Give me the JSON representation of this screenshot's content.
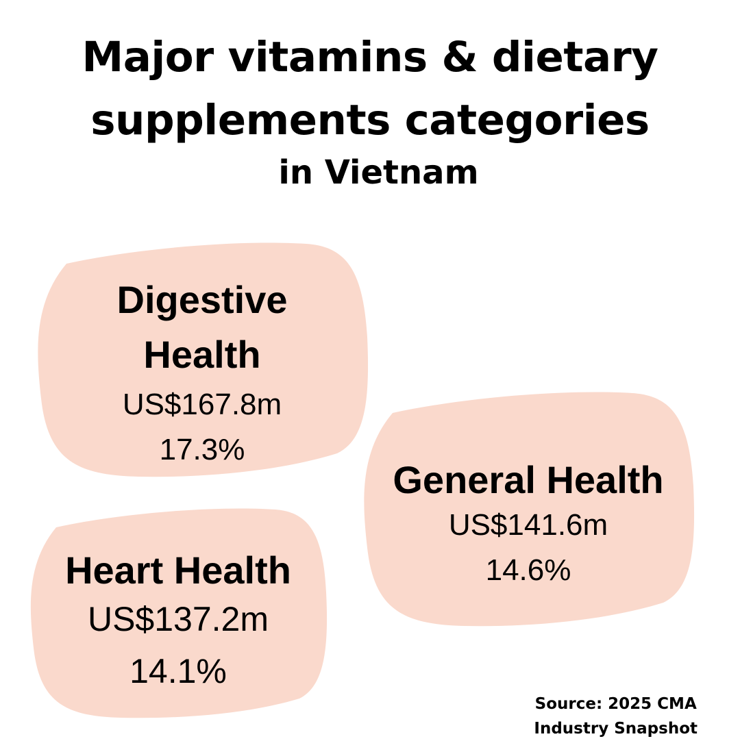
{
  "title": {
    "line1": "Major vitamins & dietary",
    "line2": "supplements categories",
    "subtitle": "in Vietnam"
  },
  "categories": [
    {
      "name_line1": "Digestive",
      "name_line2": "Health",
      "value": "US$167.8m",
      "share": "17.3%"
    },
    {
      "name": "General Health",
      "value": "US$141.6m",
      "share": "14.6%"
    },
    {
      "name": "Heart Health",
      "value": "US$137.2m",
      "share": "14.1%"
    }
  ],
  "source": {
    "line1": "Source: 2025 CMA",
    "line2": "Industry Snapshot"
  },
  "colors": {
    "card_fill": "#fad9cc",
    "background": "#ffffff",
    "text": "#000000"
  }
}
